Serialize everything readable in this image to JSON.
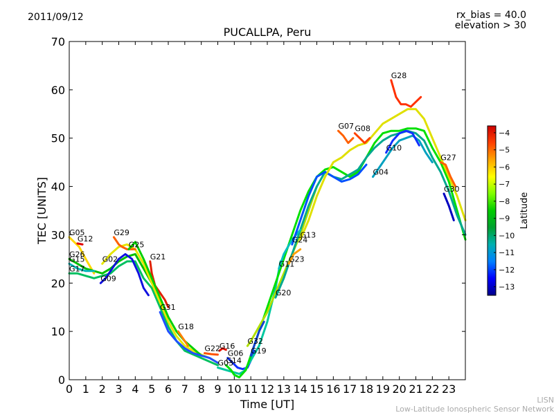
{
  "header": {
    "date": "2011/09/12",
    "rx_bias": "rx_bias = 40.0",
    "elevation": "elevation > 30"
  },
  "footer": {
    "credit_short": "LISN",
    "credit_long": "Low-Latitude Ionospheric Sensor Network"
  },
  "chart_data": {
    "type": "line",
    "title": "PUCALLPA, Peru",
    "xlabel": "Time [UT]",
    "ylabel": "TEC [UNITS]",
    "xlim": [
      0,
      24
    ],
    "ylim": [
      0,
      70
    ],
    "xticks": [
      0,
      1,
      2,
      3,
      4,
      5,
      6,
      7,
      8,
      9,
      10,
      11,
      12,
      13,
      14,
      15,
      16,
      17,
      18,
      19,
      20,
      21,
      22,
      23
    ],
    "yticks": [
      0,
      10,
      20,
      30,
      40,
      50,
      60,
      70
    ],
    "grid": false,
    "colorbar": {
      "label": "Latitude",
      "range": [
        -13.5,
        -3.6
      ],
      "ticks": [
        -4,
        -5,
        -6,
        -7,
        -8,
        -9,
        -10,
        -11,
        -12,
        -13
      ],
      "colors": [
        "#00008b",
        "#0000ff",
        "#0080ff",
        "#00b0b0",
        "#00a030",
        "#00cc00",
        "#7fff00",
        "#ffff00",
        "#ffa500",
        "#ff4000",
        "#cc0000"
      ]
    },
    "series": [
      {
        "name": "G05",
        "color": "#ffd700",
        "x": [
          0,
          0.3,
          0.6,
          1,
          1.5
        ],
        "y": [
          29.5,
          28.5,
          27.5,
          25,
          22
        ]
      },
      {
        "name": "G12",
        "color": "#e00000",
        "x": [
          0.5,
          0.8
        ],
        "y": [
          28.2,
          28
        ]
      },
      {
        "name": "G26",
        "color": "#00c000",
        "x": [
          0,
          0.5,
          1,
          1.5,
          2,
          2.5,
          3,
          3.5,
          4,
          4.5,
          5
        ],
        "y": [
          25,
          24,
          23,
          22.5,
          22,
          23,
          24.5,
          25.5,
          26,
          23,
          20
        ]
      },
      {
        "name": "G15",
        "color": "#00b8b8",
        "x": [
          0,
          0.5,
          1,
          1.5
        ],
        "y": [
          24,
          23,
          22.5,
          22.5
        ]
      },
      {
        "name": "G17",
        "color": "#00c060",
        "x": [
          0,
          0.5,
          1,
          1.5,
          2,
          2.5,
          3,
          3.5,
          4,
          4.5,
          5,
          5.5,
          6,
          6.5,
          7,
          8,
          9
        ],
        "y": [
          22,
          22,
          21.5,
          21,
          21.5,
          22,
          23.5,
          24.5,
          24.5,
          21,
          19,
          15,
          11,
          8,
          6,
          4.5,
          3
        ]
      },
      {
        "name": "G09",
        "color": "#1010e0",
        "x": [
          1.9,
          2.2,
          2.6,
          3,
          3.4,
          3.8,
          4.2,
          4.5,
          4.8
        ],
        "y": [
          20,
          21,
          23,
          25,
          26,
          25,
          22,
          19,
          17.5
        ]
      },
      {
        "name": "G02",
        "color": "#e6e600",
        "x": [
          2,
          2.5,
          3,
          3.5,
          4,
          4.5,
          5,
          5.5,
          6,
          6.5,
          7,
          7.5,
          8,
          8.5,
          9
        ],
        "y": [
          24,
          26,
          27.5,
          28,
          27,
          24,
          20,
          16,
          12,
          9,
          7,
          6,
          5.2,
          4.5,
          3.5
        ]
      },
      {
        "name": "G29",
        "color": "#ff6000",
        "x": [
          2.7,
          3,
          3.2,
          3.5,
          4
        ],
        "y": [
          29.5,
          28,
          27.5,
          27,
          27
        ]
      },
      {
        "name": "G21",
        "color": "#e02000",
        "x": [
          4.9,
          5,
          5.2,
          5.5,
          5.8,
          6
        ],
        "y": [
          24.5,
          22,
          19.5,
          18,
          16.5,
          15
        ]
      },
      {
        "name": "G25",
        "color": "#00d000",
        "x": [
          3.6,
          4,
          4.5,
          5,
          5.5,
          6,
          6.5,
          7,
          7.5,
          8
        ],
        "y": [
          27,
          28.5,
          25,
          21,
          17,
          13,
          10,
          8,
          6.5,
          5
        ]
      },
      {
        "name": "G18",
        "color": "#ff8000",
        "x": [
          6.6,
          6.8,
          7,
          7.2
        ],
        "y": [
          10,
          9,
          8,
          7
        ]
      },
      {
        "name": "G31",
        "color": "#2050ff",
        "x": [
          5.5,
          6,
          6.5,
          7,
          7.5,
          8,
          8.5,
          9
        ],
        "y": [
          14,
          10,
          8,
          6.5,
          5.5,
          5,
          4.5,
          3.5
        ]
      },
      {
        "name": "G22",
        "color": "#ff5000",
        "x": [
          8.2,
          8.6,
          9
        ],
        "y": [
          5.5,
          5.3,
          5.2
        ]
      },
      {
        "name": "G16",
        "color": "#e01000",
        "x": [
          9.1,
          9.3,
          9.5
        ],
        "y": [
          6,
          6.5,
          6.2
        ]
      },
      {
        "name": "G06",
        "color": "#1030ff",
        "x": [
          9.6,
          9.9,
          10.2,
          10.5,
          10.8,
          11,
          11.2
        ],
        "y": [
          4.5,
          3.5,
          2.5,
          2.2,
          2.5,
          4,
          6
        ]
      },
      {
        "name": "G03",
        "color": "#00c8a0",
        "x": [
          9,
          9.5,
          10,
          10.3,
          10.6,
          11,
          11.5,
          12,
          12.5,
          12.8
        ],
        "y": [
          2.5,
          2,
          1.5,
          1.2,
          1.8,
          4,
          7,
          12,
          19,
          24.5
        ]
      },
      {
        "name": "G14",
        "color": "#00e000",
        "x": [
          9.5,
          9.8,
          10,
          10.3,
          10.7,
          11,
          11.5,
          12,
          12.5,
          13,
          13.5,
          14,
          14.5,
          15,
          15.5,
          16,
          16.5,
          17,
          17.5,
          18,
          18.5,
          19,
          19.5,
          20,
          20.5,
          21,
          21.5,
          22,
          22.5,
          23,
          23.5,
          24
        ],
        "y": [
          3,
          2,
          1,
          0.5,
          2,
          5,
          10,
          15,
          20,
          25,
          30,
          35,
          39,
          42,
          43.5,
          44,
          43,
          42,
          43,
          46,
          49,
          51,
          51.5,
          51.5,
          52,
          52,
          51.5,
          48,
          45,
          41,
          35,
          29
        ]
      },
      {
        "name": "G32",
        "color": "#b0e000",
        "x": [
          10.8,
          11,
          11.5,
          12,
          12.5,
          13,
          13.5,
          14,
          14.5,
          15
        ],
        "y": [
          7,
          8,
          11,
          14,
          18,
          22,
          26,
          30,
          35,
          40
        ]
      },
      {
        "name": "G19",
        "color": "#1040d0",
        "x": [
          11,
          11.2,
          11.5,
          11.8
        ],
        "y": [
          5,
          7,
          10,
          12
        ]
      },
      {
        "name": "G20",
        "color": "#00a890",
        "x": [
          12.5,
          13,
          13.5,
          14,
          14.5,
          15,
          15.5,
          16,
          16.5,
          17,
          17.5,
          18,
          18.5,
          19,
          19.5,
          20,
          20.5,
          21,
          21.5,
          22,
          22.5,
          23,
          23.5,
          24
        ],
        "y": [
          17,
          21,
          26,
          31,
          36,
          40,
          43,
          42,
          41.5,
          42.5,
          43.5,
          46,
          48,
          49.5,
          50.5,
          51,
          51.5,
          51,
          49.5,
          46,
          43,
          39,
          34,
          30
        ]
      },
      {
        "name": "G11",
        "color": "#00c0c0",
        "x": [
          12.7,
          13,
          13.5,
          14
        ],
        "y": [
          23,
          26,
          29,
          31
        ]
      },
      {
        "name": "G23",
        "color": "#ffa000",
        "x": [
          13.3,
          13.6,
          14
        ],
        "y": [
          24,
          26,
          27
        ]
      },
      {
        "name": "G24",
        "color": "#0050ff",
        "x": [
          13.5,
          14,
          14.5,
          15,
          15.5,
          16,
          16.5,
          17,
          17.5,
          18
        ],
        "y": [
          28,
          33,
          38,
          42,
          43,
          42,
          41,
          41.5,
          42.5,
          44.5
        ]
      },
      {
        "name": "G13",
        "color": "#e0e000",
        "x": [
          14,
          14.5,
          15,
          15.5,
          16,
          16.5,
          17,
          17.5,
          18,
          18.5,
          19,
          19.5,
          20,
          20.5,
          21,
          21.5,
          22,
          22.5,
          23,
          23.5,
          24
        ],
        "y": [
          29,
          33,
          38,
          42,
          45,
          46,
          47.5,
          48.5,
          49,
          51,
          53,
          54,
          55,
          56,
          56,
          54,
          50,
          46,
          42,
          38,
          33
        ]
      },
      {
        "name": "G07",
        "color": "#ff6000",
        "x": [
          16.3,
          16.6,
          16.9,
          17.2
        ],
        "y": [
          51.5,
          50.5,
          49,
          50
        ]
      },
      {
        "name": "G08",
        "color": "#ff4000",
        "x": [
          17.3,
          17.6,
          17.9,
          18.2
        ],
        "y": [
          51,
          50,
          49,
          50
        ]
      },
      {
        "name": "G04",
        "color": "#00a0c0",
        "x": [
          18.4,
          18.8,
          19.2,
          19.6,
          20,
          20.4,
          20.8,
          21.2,
          21.6,
          22
        ],
        "y": [
          42,
          44,
          46,
          48,
          49.5,
          50,
          50.5,
          49.5,
          47,
          45
        ]
      },
      {
        "name": "G10",
        "color": "#1030ff",
        "x": [
          19.2,
          19.6,
          20,
          20.4,
          20.8,
          21.2
        ],
        "y": [
          47,
          49.5,
          51,
          51.5,
          51,
          48.5
        ]
      },
      {
        "name": "G28",
        "color": "#ff3000",
        "x": [
          19.5,
          19.8,
          20.1,
          20.4,
          20.7,
          21,
          21.3
        ],
        "y": [
          62,
          58.5,
          57,
          57,
          56.5,
          57.5,
          58.5
        ]
      },
      {
        "name": "G27",
        "color": "#ff6000",
        "x": [
          22.5,
          22.8,
          23.1,
          23.4
        ],
        "y": [
          45,
          44.5,
          42,
          40
        ]
      },
      {
        "name": "G30",
        "color": "#0000c0",
        "x": [
          22.7,
          23,
          23.3
        ],
        "y": [
          38.5,
          36,
          33
        ]
      }
    ]
  }
}
